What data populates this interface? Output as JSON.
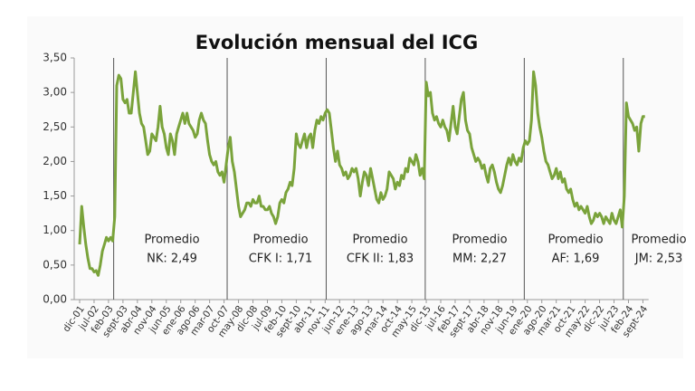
{
  "chart_data": {
    "type": "line",
    "title": "Evolución mensual del ICG",
    "categories": [
      "dic-01",
      null,
      null,
      null,
      null,
      null,
      null,
      "jul-02",
      null,
      null,
      null,
      null,
      null,
      null,
      "feb-03",
      null,
      null,
      null,
      null,
      null,
      null,
      "sept-03",
      null,
      null,
      null,
      null,
      null,
      null,
      "abr-04",
      null,
      null,
      null,
      null,
      null,
      null,
      "nov-04",
      null,
      null,
      null,
      null,
      null,
      null,
      "jun-05",
      null,
      null,
      null,
      null,
      null,
      null,
      "ene-06",
      null,
      null,
      null,
      null,
      null,
      null,
      "ago-06",
      null,
      null,
      null,
      null,
      null,
      null,
      "mar-07",
      null,
      null,
      null,
      null,
      null,
      null,
      "oct-07",
      null,
      null,
      null,
      null,
      null,
      null,
      "may-08",
      null,
      null,
      null,
      null,
      null,
      null,
      "dic-08",
      null,
      null,
      null,
      null,
      null,
      null,
      "jul-09",
      null,
      null,
      null,
      null,
      null,
      null,
      "feb-10",
      null,
      null,
      null,
      null,
      null,
      null,
      "sept-10",
      null,
      null,
      null,
      null,
      null,
      null,
      "abr-11",
      null,
      null,
      null,
      null,
      null,
      null,
      "nov-11",
      null,
      null,
      null,
      null,
      null,
      null,
      "jun-12",
      null,
      null,
      null,
      null,
      null,
      null,
      "ene-13",
      null,
      null,
      null,
      null,
      null,
      null,
      "ago-13",
      null,
      null,
      null,
      null,
      null,
      null,
      "mar-14",
      null,
      null,
      null,
      null,
      null,
      null,
      "oct-14",
      null,
      null,
      null,
      null,
      null,
      null,
      "may-15",
      null,
      null,
      null,
      null,
      null,
      null,
      "dic-15",
      null,
      null,
      null,
      null,
      null,
      null,
      "jul-16",
      null,
      null,
      null,
      null,
      null,
      null,
      "feb-17",
      null,
      null,
      null,
      null,
      null,
      null,
      "sept-17",
      null,
      null,
      null,
      null,
      null,
      null,
      "abr-18",
      null,
      null,
      null,
      null,
      null,
      null,
      "nov-18",
      null,
      null,
      null,
      null,
      null,
      null,
      "jun-19",
      null,
      null,
      null,
      null,
      null,
      null,
      "ene-20",
      null,
      null,
      null,
      null,
      null,
      null,
      "ago-20",
      null,
      null,
      null,
      null,
      null,
      null,
      "mar-21",
      null,
      null,
      null,
      null,
      null,
      null,
      "oct-21",
      null,
      null,
      null,
      null,
      null,
      null,
      "may-22",
      null,
      null,
      null,
      null,
      null,
      null,
      "dic-22",
      null,
      null,
      null,
      null,
      null,
      null,
      "jul-23",
      null,
      null,
      null,
      null,
      null,
      null,
      "feb-24",
      null,
      null,
      null,
      null,
      null,
      null,
      "sept-24",
      null
    ],
    "values": [
      0.8,
      1.35,
      1.05,
      0.8,
      0.6,
      0.45,
      0.45,
      0.4,
      0.42,
      0.35,
      0.5,
      0.7,
      0.8,
      0.9,
      0.85,
      0.9,
      0.85,
      1.2,
      3.1,
      3.25,
      3.2,
      2.9,
      2.85,
      2.9,
      2.7,
      2.7,
      3.0,
      3.3,
      3.0,
      2.7,
      2.55,
      2.5,
      2.3,
      2.1,
      2.15,
      2.4,
      2.35,
      2.3,
      2.5,
      2.8,
      2.5,
      2.4,
      2.2,
      2.1,
      2.4,
      2.3,
      2.1,
      2.4,
      2.5,
      2.6,
      2.7,
      2.55,
      2.7,
      2.55,
      2.5,
      2.45,
      2.35,
      2.4,
      2.6,
      2.7,
      2.6,
      2.55,
      2.3,
      2.1,
      2.0,
      1.95,
      2.0,
      1.85,
      1.8,
      1.85,
      1.7,
      1.95,
      2.2,
      2.35,
      2.0,
      1.85,
      1.6,
      1.35,
      1.2,
      1.25,
      1.3,
      1.4,
      1.4,
      1.35,
      1.45,
      1.4,
      1.4,
      1.5,
      1.35,
      1.35,
      1.3,
      1.3,
      1.35,
      1.25,
      1.2,
      1.1,
      1.2,
      1.4,
      1.45,
      1.4,
      1.55,
      1.6,
      1.7,
      1.65,
      1.9,
      2.4,
      2.25,
      2.2,
      2.3,
      2.4,
      2.2,
      2.35,
      2.4,
      2.2,
      2.45,
      2.6,
      2.55,
      2.65,
      2.6,
      2.7,
      2.75,
      2.7,
      2.45,
      2.2,
      2.0,
      2.15,
      1.95,
      1.9,
      1.8,
      1.85,
      1.75,
      1.8,
      1.9,
      1.85,
      1.9,
      1.75,
      1.5,
      1.7,
      1.85,
      1.8,
      1.65,
      1.9,
      1.75,
      1.6,
      1.45,
      1.4,
      1.55,
      1.45,
      1.5,
      1.6,
      1.85,
      1.8,
      1.75,
      1.6,
      1.7,
      1.65,
      1.8,
      1.75,
      1.9,
      1.85,
      2.05,
      2.0,
      1.95,
      2.1,
      2.0,
      1.8,
      1.9,
      1.75,
      3.15,
      2.95,
      3.0,
      2.7,
      2.6,
      2.65,
      2.55,
      2.5,
      2.6,
      2.5,
      2.45,
      2.3,
      2.55,
      2.8,
      2.5,
      2.4,
      2.65,
      2.9,
      3.0,
      2.6,
      2.45,
      2.4,
      2.2,
      2.1,
      2.0,
      2.05,
      2.0,
      1.9,
      1.95,
      1.8,
      1.7,
      1.9,
      1.95,
      1.85,
      1.7,
      1.6,
      1.55,
      1.65,
      1.8,
      1.95,
      2.05,
      1.95,
      2.1,
      2.0,
      1.95,
      2.05,
      2.0,
      2.2,
      2.3,
      2.25,
      2.3,
      2.6,
      3.3,
      3.1,
      2.7,
      2.5,
      2.35,
      2.15,
      2.0,
      1.95,
      1.85,
      1.75,
      1.8,
      1.9,
      1.75,
      1.85,
      1.7,
      1.75,
      1.6,
      1.55,
      1.6,
      1.45,
      1.35,
      1.4,
      1.3,
      1.35,
      1.3,
      1.25,
      1.35,
      1.2,
      1.1,
      1.15,
      1.25,
      1.2,
      1.25,
      1.2,
      1.1,
      1.2,
      1.15,
      1.1,
      1.25,
      1.15,
      1.1,
      1.2,
      1.3,
      1.05,
      1.5,
      2.85,
      2.65,
      2.6,
      2.55,
      2.45,
      2.5,
      2.15,
      2.55,
      2.65,
      2.65
    ],
    "color": "#7aa33b",
    "ylim": [
      0,
      3.5
    ],
    "yticks": [
      {
        "value": 0,
        "label": "0,00"
      },
      {
        "value": 0.5,
        "label": "0,50"
      },
      {
        "value": 1,
        "label": "1,00"
      },
      {
        "value": 1.5,
        "label": "1,50"
      },
      {
        "value": 2,
        "label": "2,00"
      },
      {
        "value": 2.5,
        "label": "2,50"
      },
      {
        "value": 3,
        "label": "3,00"
      },
      {
        "value": 3.5,
        "label": "3,50"
      }
    ],
    "annotations": [
      [
        "Promedio",
        "NK: 2,49"
      ],
      [
        "Promedio",
        "CFK I: 1,71"
      ],
      [
        "Promedio",
        "CFK II: 1,83"
      ],
      [
        "Promedio",
        "MM: 2,27"
      ],
      [
        "Promedio",
        "AF: 1,69"
      ],
      [
        "Promedio",
        "JM: 2,53"
      ]
    ]
  }
}
